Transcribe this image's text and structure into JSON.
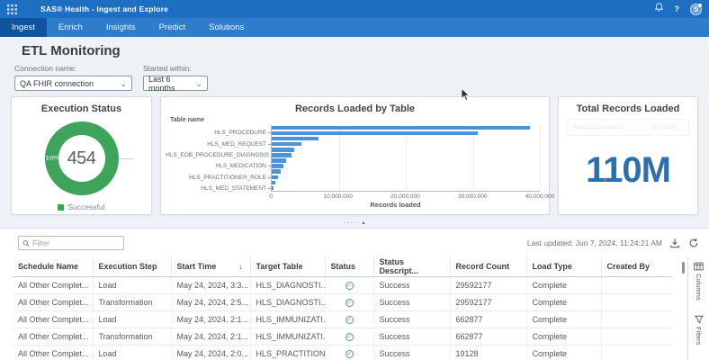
{
  "header": {
    "app_title": "SAS® Health - Ingest and Explore",
    "help_label": "?",
    "avatar_initial": "S"
  },
  "nav": {
    "tabs": [
      {
        "label": "Ingest",
        "active": true
      },
      {
        "label": "Enrich",
        "active": false
      },
      {
        "label": "Insights",
        "active": false
      },
      {
        "label": "Predict",
        "active": false
      },
      {
        "label": "Solutions",
        "active": false
      }
    ]
  },
  "page": {
    "title": "ETL Monitoring",
    "connection_label": "Connection name:",
    "connection_value": "QA FHIR connection",
    "started_label": "Started within:",
    "started_value": "Last 6 months"
  },
  "panels": {
    "execution_status": {
      "title": "Execution Status",
      "center_value": "454",
      "percent_label": "100%",
      "legend_label": "Successful",
      "color": "#3fa45b"
    },
    "total_records": {
      "title": "Total Records Loaded",
      "value": "110M",
      "ghost_label": "Records loaded",
      "ghost_value": "110,252,...",
      "color": "#2d6fad"
    }
  },
  "chart_data": [
    {
      "type": "pie",
      "title": "Execution Status",
      "center_value": "454",
      "slices": [
        {
          "label": "Successful",
          "value": 454,
          "percent": 100,
          "color": "#3fa45b"
        }
      ],
      "legend_position": "bottom"
    },
    {
      "type": "bar",
      "orientation": "horizontal",
      "title": "Records Loaded by Table",
      "ylabel": "Table name",
      "xlabel": "Records loaded",
      "xlim": [
        0,
        40000000
      ],
      "x_ticks": [
        0,
        10000000,
        20000000,
        30000000,
        40000000
      ],
      "x_tick_labels": [
        "0",
        "10,000,000",
        "20,000,000",
        "30,000,000",
        "40,000,000"
      ],
      "bar_color": "#4d93da",
      "grid": true,
      "categories": [
        "",
        "HLS_PROCEDURE",
        "",
        "HLS_MED_REQUEST",
        "",
        "HLS_EOB_PROCEDURE_DIAGNOSIS",
        "",
        "HLS_MEDICATION",
        "",
        "HLS_PRACTITIONER_ROLE",
        "",
        "HLS_MED_STATEMENT"
      ],
      "values": [
        38500000,
        30800000,
        7000000,
        4400000,
        3400000,
        3000000,
        2100000,
        1700000,
        1300000,
        1000000,
        600000,
        250000
      ]
    }
  ],
  "toolbar": {
    "filter_placeholder": "Filter",
    "last_updated": "Last updated: Jun 7, 2024, 11:24:21 AM"
  },
  "table": {
    "columns": [
      {
        "key": "schedule",
        "label": "Schedule Name"
      },
      {
        "key": "step",
        "label": "Execution Step"
      },
      {
        "key": "start",
        "label": "Start Time",
        "sort": "desc"
      },
      {
        "key": "target",
        "label": "Target Table"
      },
      {
        "key": "status",
        "label": "Status",
        "type": "icon"
      },
      {
        "key": "desc",
        "label": "Status Descript..."
      },
      {
        "key": "count",
        "label": "Record Count"
      },
      {
        "key": "load",
        "label": "Load Type"
      },
      {
        "key": "created",
        "label": "Created By"
      }
    ],
    "rows": [
      {
        "schedule": "All Other Complet...",
        "step": "Load",
        "start": "May 24, 2024, 3:3...",
        "target": "HLS_DIAGNOSTI...",
        "status": "success",
        "desc": "Success",
        "count": "29592177",
        "load": "Complete",
        "created": ""
      },
      {
        "schedule": "All Other Complet...",
        "step": "Transformation",
        "start": "May 24, 2024, 2:5...",
        "target": "HLS_DIAGNOSTI...",
        "status": "success",
        "desc": "Success",
        "count": "29592177",
        "load": "Complete",
        "created": ""
      },
      {
        "schedule": "All Other Complet...",
        "step": "Load",
        "start": "May 24, 2024, 2:1...",
        "target": "HLS_IMMUNIZATI...",
        "status": "success",
        "desc": "Success",
        "count": "662877",
        "load": "Complete",
        "created": ""
      },
      {
        "schedule": "All Other Complet...",
        "step": "Transformation",
        "start": "May 24, 2024, 2:1...",
        "target": "HLS_IMMUNIZATI...",
        "status": "success",
        "desc": "Success",
        "count": "662877",
        "load": "Complete",
        "created": ""
      },
      {
        "schedule": "All Other Complet...",
        "step": "Load",
        "start": "May 24, 2024, 2:0...",
        "target": "HLS_PRACTITION...",
        "status": "success",
        "desc": "Success",
        "count": "19128",
        "load": "Complete",
        "created": ""
      }
    ],
    "side_panel": {
      "columns_label": "Columns",
      "filters_label": "Filters"
    }
  }
}
